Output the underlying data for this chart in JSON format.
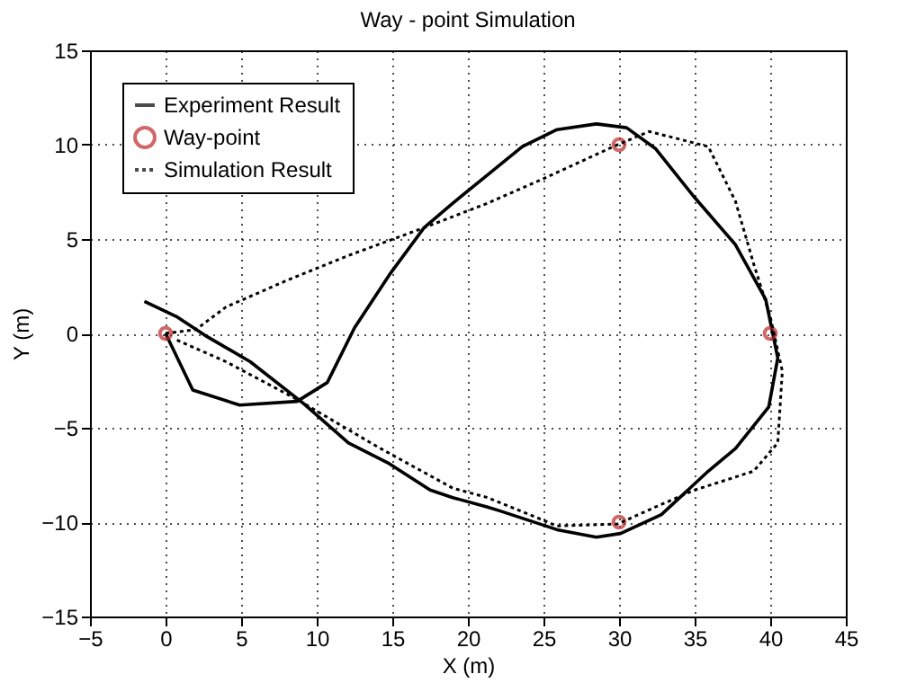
{
  "chart_data": {
    "type": "line",
    "title": "Way - point Simulation",
    "xlabel": "X (m)",
    "ylabel": "Y (m)",
    "xlim": [
      -5,
      45
    ],
    "ylim": [
      -15,
      15
    ],
    "xticks": [
      -5,
      0,
      5,
      10,
      15,
      20,
      25,
      30,
      35,
      40,
      45
    ],
    "yticks": [
      -15,
      -10,
      -5,
      0,
      5,
      10,
      15
    ],
    "grid": true,
    "legend": "top left",
    "series": [
      {
        "name": "Experiment Result",
        "type": "line",
        "line_style": "solid",
        "color": "#000000",
        "x": [
          -1.4,
          0.7,
          2.6,
          5.6,
          9.1,
          12.1,
          14.8,
          17.5,
          19,
          21.3,
          22.1,
          25.9,
          28.5,
          30.1,
          32.8,
          35.9,
          37.7,
          39.9,
          40.5,
          39.7,
          37.7,
          35,
          32.4,
          30.5,
          28.5,
          25.9,
          23.6,
          21.3,
          19,
          17.1,
          14.8,
          12.5,
          10.7,
          8.7,
          4.9,
          1.8,
          0
        ],
        "values": [
          1.7,
          0.9,
          -0.1,
          -1.5,
          -3.7,
          -5.8,
          -6.9,
          -8.3,
          -8.7,
          -9.2,
          -9.4,
          -10.4,
          -10.8,
          -10.6,
          -9.6,
          -7.3,
          -6.1,
          -3.9,
          -1.3,
          1.8,
          4.7,
          7.2,
          9.8,
          10.9,
          11.1,
          10.8,
          9.9,
          8.4,
          6.9,
          5.6,
          3.1,
          0.3,
          -2.6,
          -3.6,
          -3.8,
          -3,
          0
        ]
      },
      {
        "name": "Way-point",
        "type": "scatter",
        "marker": "circle",
        "color": "#c0282b",
        "x": [
          0,
          30,
          40,
          30
        ],
        "values": [
          0,
          10,
          0,
          -10
        ]
      },
      {
        "name": "Simulation Result",
        "type": "line",
        "line_style": "dotted",
        "color": "#000000",
        "x": [
          0,
          2,
          4,
          8,
          12,
          17.1,
          21.3,
          25,
          29.9,
          32,
          35.9,
          37.7,
          38.9,
          40,
          40.8,
          40.5,
          38.9,
          35,
          32.4,
          29.9,
          25.9,
          21.3,
          19,
          14,
          8.7,
          4,
          0.6
        ],
        "values": [
          0,
          0.2,
          1.4,
          2.8,
          4.1,
          5.6,
          6.9,
          8.2,
          10,
          10.7,
          9.9,
          7,
          3.7,
          0.9,
          -2,
          -5.8,
          -7.3,
          -8.3,
          -9.2,
          -10.1,
          -10.2,
          -8.7,
          -8.2,
          -6,
          -3.5,
          -1.5,
          -0.3
        ]
      }
    ]
  }
}
